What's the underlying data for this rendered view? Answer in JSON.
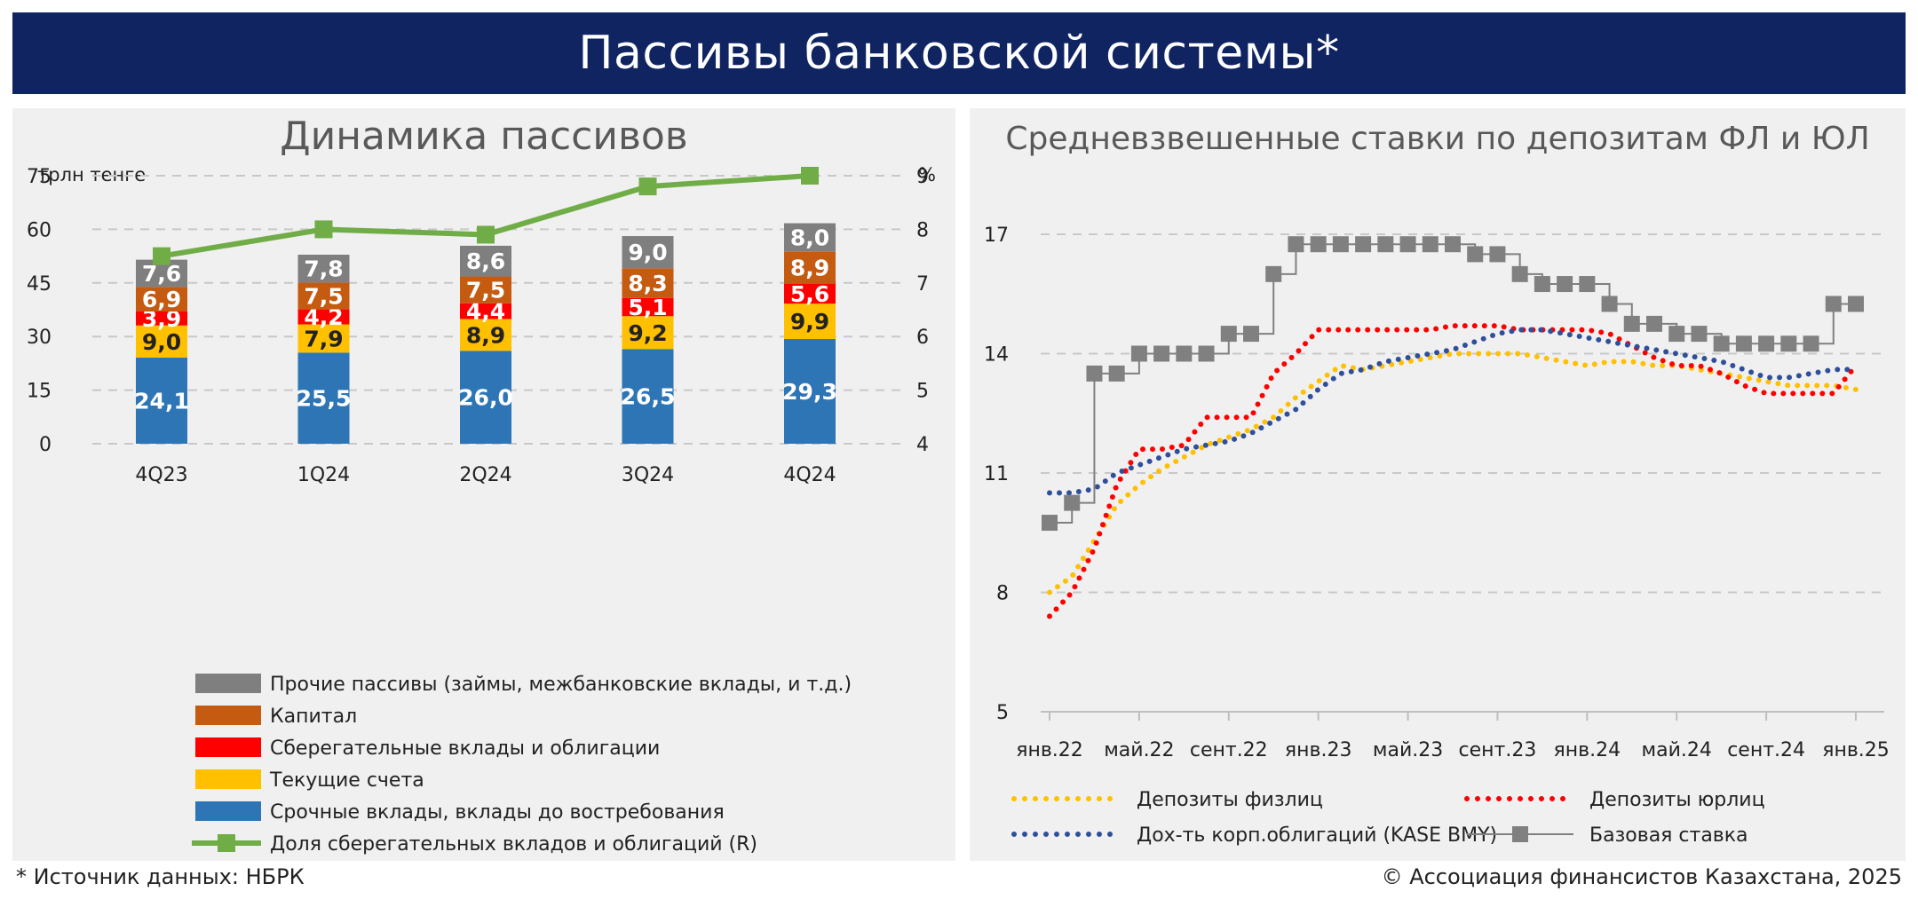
{
  "header": {
    "title": "Пассивы банковской системы*"
  },
  "footer": {
    "source": "* Источник данных: НБРК",
    "copyright": "© Ассоциация финансистов Казахстана, 2025"
  },
  "chart_data": [
    {
      "type": "bar",
      "stacked": true,
      "title": "Динамика пассивов",
      "ylabel": "трлн тенге",
      "y2label": "%",
      "ylim": [
        0,
        75
      ],
      "y2lim": [
        4,
        9
      ],
      "yticks": [
        "0",
        "15",
        "30",
        "45",
        "60",
        "75"
      ],
      "y2ticks": [
        "4",
        "5",
        "6",
        "7",
        "8",
        "9"
      ],
      "categories": [
        "4Q23",
        "1Q24",
        "2Q24",
        "3Q24",
        "4Q24"
      ],
      "series": [
        {
          "name": "Срочные вклады, вклады до востребования",
          "color": "#2e75b6",
          "values": [
            24.1,
            25.5,
            26.0,
            26.5,
            29.3
          ],
          "labels": [
            "24,1",
            "25,5",
            "26,0",
            "26,5",
            "29,3"
          ]
        },
        {
          "name": "Текущие счета",
          "color": "#ffc000",
          "values": [
            9.0,
            7.9,
            8.9,
            9.2,
            9.9
          ],
          "labels": [
            "9,0",
            "7,9",
            "8,9",
            "9,2",
            "9,9"
          ]
        },
        {
          "name": "Сберегательные вклады и облигации",
          "color": "#ff0000",
          "values": [
            3.9,
            4.2,
            4.4,
            5.1,
            5.6
          ],
          "labels": [
            "3,9",
            "4,2",
            "4,4",
            "5,1",
            "5,6"
          ]
        },
        {
          "name": "Капитал",
          "color": "#c55a11",
          "values": [
            6.9,
            7.5,
            7.5,
            8.3,
            8.9
          ],
          "labels": [
            "6,9",
            "7,5",
            "7,5",
            "8,3",
            "8,9"
          ]
        },
        {
          "name": "Прочие пассивы (займы, межбанковские вклады, и т.д.)",
          "color": "#7f7f7f",
          "values": [
            7.6,
            7.8,
            8.6,
            9.0,
            8.0
          ],
          "labels": [
            "7,6",
            "7,8",
            "8,6",
            "9,0",
            "8,0"
          ]
        }
      ],
      "line_series": {
        "name": "Доля сберегательных вкладов и облигаций (R)",
        "color": "#70ad47",
        "axis": "right",
        "values": [
          7.5,
          8.0,
          7.9,
          8.8,
          9.0
        ]
      },
      "legend_order": [
        4,
        3,
        2,
        1,
        0,
        "line"
      ],
      "legend_position": "bottom",
      "grid": true
    },
    {
      "type": "line",
      "title": "Средневзвешенные ставки по депозитам ФЛ и ЮЛ",
      "ylim": [
        5,
        17
      ],
      "yticks": [
        "5",
        "8",
        "11",
        "14",
        "17"
      ],
      "x_tick_labels": [
        "янв.22",
        "май.22",
        "сент.22",
        "янв.23",
        "май.23",
        "сент.23",
        "янв.24",
        "май.24",
        "сент.24",
        "янв.25"
      ],
      "x_start": "2022-01",
      "x_end": "2025-01",
      "series": [
        {
          "name": "Депозиты физлиц",
          "color": "#ffc000",
          "style": "dotted",
          "x": [
            "2022-01",
            "2022-02",
            "2022-03",
            "2022-04",
            "2022-05",
            "2022-06",
            "2022-07",
            "2022-08",
            "2022-09",
            "2022-10",
            "2022-11",
            "2022-12",
            "2023-01",
            "2023-02",
            "2023-03",
            "2023-04",
            "2023-05",
            "2023-06",
            "2023-07",
            "2023-08",
            "2023-09",
            "2023-10",
            "2023-11",
            "2023-12",
            "2024-01",
            "2024-02",
            "2024-03",
            "2024-04",
            "2024-05",
            "2024-06",
            "2024-07",
            "2024-08",
            "2024-09",
            "2024-10",
            "2024-11",
            "2024-12",
            "2025-01"
          ],
          "values": [
            8.0,
            8.4,
            9.3,
            10.2,
            10.7,
            11.1,
            11.4,
            11.7,
            11.9,
            12.1,
            12.4,
            12.9,
            13.3,
            13.7,
            13.6,
            13.7,
            13.8,
            13.9,
            14.0,
            14.0,
            14.0,
            14.0,
            13.9,
            13.8,
            13.7,
            13.8,
            13.8,
            13.7,
            13.7,
            13.6,
            13.5,
            13.4,
            13.3,
            13.2,
            13.2,
            13.2,
            13.1
          ]
        },
        {
          "name": "Депозиты юрлиц",
          "color": "#ff0000",
          "style": "dotted",
          "x": [
            "2022-01",
            "2022-02",
            "2022-03",
            "2022-04",
            "2022-05",
            "2022-06",
            "2022-07",
            "2022-08",
            "2022-09",
            "2022-10",
            "2022-11",
            "2022-12",
            "2023-01",
            "2023-02",
            "2023-03",
            "2023-04",
            "2023-05",
            "2023-06",
            "2023-07",
            "2023-08",
            "2023-09",
            "2023-10",
            "2023-11",
            "2023-12",
            "2024-01",
            "2024-02",
            "2024-03",
            "2024-04",
            "2024-05",
            "2024-06",
            "2024-07",
            "2024-08",
            "2024-09",
            "2024-10",
            "2024-11",
            "2024-12",
            "2025-01"
          ],
          "values": [
            7.4,
            8.0,
            9.1,
            10.7,
            11.6,
            11.6,
            11.7,
            12.4,
            12.4,
            12.4,
            13.5,
            14.0,
            14.6,
            14.6,
            14.6,
            14.6,
            14.6,
            14.6,
            14.7,
            14.7,
            14.7,
            14.6,
            14.6,
            14.6,
            14.6,
            14.5,
            14.2,
            13.9,
            13.7,
            13.7,
            13.5,
            13.2,
            13.0,
            13.0,
            13.0,
            13.0,
            13.7
          ]
        },
        {
          "name": "Дох-ть корп.облигаций (KASE BMY)",
          "color": "#2f4f9a",
          "style": "dotted",
          "x": [
            "2022-01",
            "2022-02",
            "2022-03",
            "2022-04",
            "2022-05",
            "2022-06",
            "2022-07",
            "2022-08",
            "2022-09",
            "2022-10",
            "2022-11",
            "2022-12",
            "2023-01",
            "2023-02",
            "2023-03",
            "2023-04",
            "2023-05",
            "2023-06",
            "2023-07",
            "2023-08",
            "2023-09",
            "2023-10",
            "2023-11",
            "2023-12",
            "2024-01",
            "2024-02",
            "2024-03",
            "2024-04",
            "2024-05",
            "2024-06",
            "2024-07",
            "2024-08",
            "2024-09",
            "2024-10",
            "2024-11",
            "2024-12",
            "2025-01"
          ],
          "values": [
            10.5,
            10.5,
            10.6,
            11.0,
            11.2,
            11.4,
            11.6,
            11.7,
            11.8,
            12.0,
            12.3,
            12.6,
            13.1,
            13.5,
            13.6,
            13.8,
            13.9,
            14.0,
            14.1,
            14.3,
            14.5,
            14.6,
            14.6,
            14.5,
            14.4,
            14.3,
            14.2,
            14.1,
            14.0,
            13.9,
            13.8,
            13.6,
            13.4,
            13.4,
            13.5,
            13.6,
            13.6
          ]
        },
        {
          "name": "Базовая ставка",
          "color": "#808080",
          "style": "solid-square",
          "x": [
            "2022-01",
            "2022-02",
            "2022-03",
            "2022-04",
            "2022-05",
            "2022-06",
            "2022-07",
            "2022-08",
            "2022-09",
            "2022-10",
            "2022-11",
            "2022-12",
            "2023-01",
            "2023-02",
            "2023-03",
            "2023-04",
            "2023-05",
            "2023-06",
            "2023-07",
            "2023-08",
            "2023-09",
            "2023-10",
            "2023-11",
            "2023-12",
            "2024-01",
            "2024-02",
            "2024-03",
            "2024-04",
            "2024-05",
            "2024-06",
            "2024-07",
            "2024-08",
            "2024-09",
            "2024-10",
            "2024-11",
            "2024-12",
            "2025-01"
          ],
          "values": [
            9.75,
            10.25,
            13.5,
            13.5,
            14.0,
            14.0,
            14.0,
            14.0,
            14.5,
            14.5,
            16.0,
            16.75,
            16.75,
            16.75,
            16.75,
            16.75,
            16.75,
            16.75,
            16.75,
            16.5,
            16.5,
            16.0,
            15.75,
            15.75,
            15.75,
            15.25,
            14.75,
            14.75,
            14.5,
            14.5,
            14.25,
            14.25,
            14.25,
            14.25,
            14.25,
            15.25,
            15.25
          ]
        }
      ],
      "legend_position": "bottom",
      "grid": true
    }
  ]
}
